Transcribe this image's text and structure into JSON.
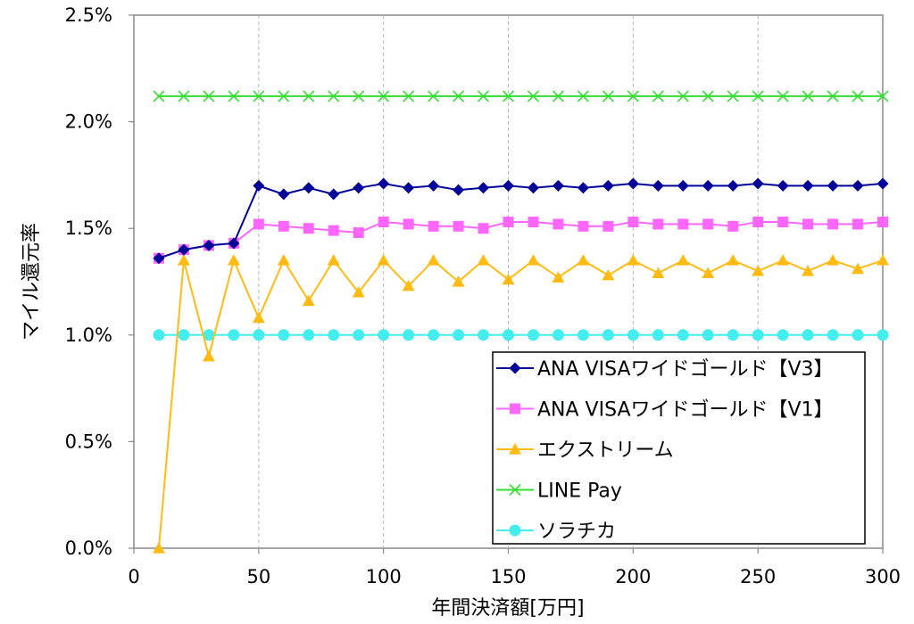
{
  "chart_data": {
    "type": "line",
    "xlabel": "年間決済額[万円]",
    "ylabel": "マイル還元率",
    "xlim": [
      0,
      300
    ],
    "ylim": [
      0,
      2.5
    ],
    "x_ticks": [
      "0",
      "50",
      "100",
      "150",
      "200",
      "250",
      "300"
    ],
    "y_ticks": [
      "0.0%",
      "0.5%",
      "1.0%",
      "1.5%",
      "2.0%",
      "2.5%"
    ],
    "grid": "vertical dashed",
    "legend_position": "bottom-right",
    "x": [
      10,
      20,
      30,
      40,
      50,
      60,
      70,
      80,
      90,
      100,
      110,
      120,
      130,
      140,
      150,
      160,
      170,
      180,
      190,
      200,
      210,
      220,
      230,
      240,
      250,
      260,
      270,
      280,
      290,
      300
    ],
    "series": [
      {
        "name": "ANA VISAワイドゴールド【V3】",
        "color": "#000099",
        "marker": "diamond",
        "values": [
          1.36,
          1.4,
          1.42,
          1.43,
          1.7,
          1.66,
          1.69,
          1.66,
          1.69,
          1.71,
          1.69,
          1.7,
          1.68,
          1.69,
          1.7,
          1.69,
          1.7,
          1.69,
          1.7,
          1.71,
          1.7,
          1.7,
          1.7,
          1.7,
          1.71,
          1.7,
          1.7,
          1.7,
          1.7,
          1.71
        ]
      },
      {
        "name": "ANA VISAワイドゴールド【V1】",
        "color": "#ff66ff",
        "marker": "square",
        "values": [
          1.36,
          1.4,
          1.42,
          1.43,
          1.52,
          1.51,
          1.5,
          1.49,
          1.48,
          1.53,
          1.52,
          1.51,
          1.51,
          1.5,
          1.53,
          1.53,
          1.52,
          1.51,
          1.51,
          1.53,
          1.52,
          1.52,
          1.52,
          1.51,
          1.53,
          1.53,
          1.52,
          1.52,
          1.52,
          1.53
        ]
      },
      {
        "name": "エクストリーム",
        "color": "#ffbb11",
        "marker": "triangle",
        "values": [
          0.0,
          1.35,
          0.9,
          1.35,
          1.08,
          1.35,
          1.16,
          1.35,
          1.2,
          1.35,
          1.23,
          1.35,
          1.25,
          1.35,
          1.26,
          1.35,
          1.27,
          1.35,
          1.28,
          1.35,
          1.29,
          1.35,
          1.29,
          1.35,
          1.3,
          1.35,
          1.3,
          1.35,
          1.31,
          1.35
        ]
      },
      {
        "name": "LINE Pay",
        "color": "#33dd33",
        "marker": "x",
        "values": [
          2.12,
          2.12,
          2.12,
          2.12,
          2.12,
          2.12,
          2.12,
          2.12,
          2.12,
          2.12,
          2.12,
          2.12,
          2.12,
          2.12,
          2.12,
          2.12,
          2.12,
          2.12,
          2.12,
          2.12,
          2.12,
          2.12,
          2.12,
          2.12,
          2.12,
          2.12,
          2.12,
          2.12,
          2.12,
          2.12
        ]
      },
      {
        "name": "ソラチカ",
        "color": "#44eeee",
        "marker": "circle",
        "values": [
          1.0,
          1.0,
          1.0,
          1.0,
          1.0,
          1.0,
          1.0,
          1.0,
          1.0,
          1.0,
          1.0,
          1.0,
          1.0,
          1.0,
          1.0,
          1.0,
          1.0,
          1.0,
          1.0,
          1.0,
          1.0,
          1.0,
          1.0,
          1.0,
          1.0,
          1.0,
          1.0,
          1.0,
          1.0,
          1.0
        ]
      }
    ]
  }
}
